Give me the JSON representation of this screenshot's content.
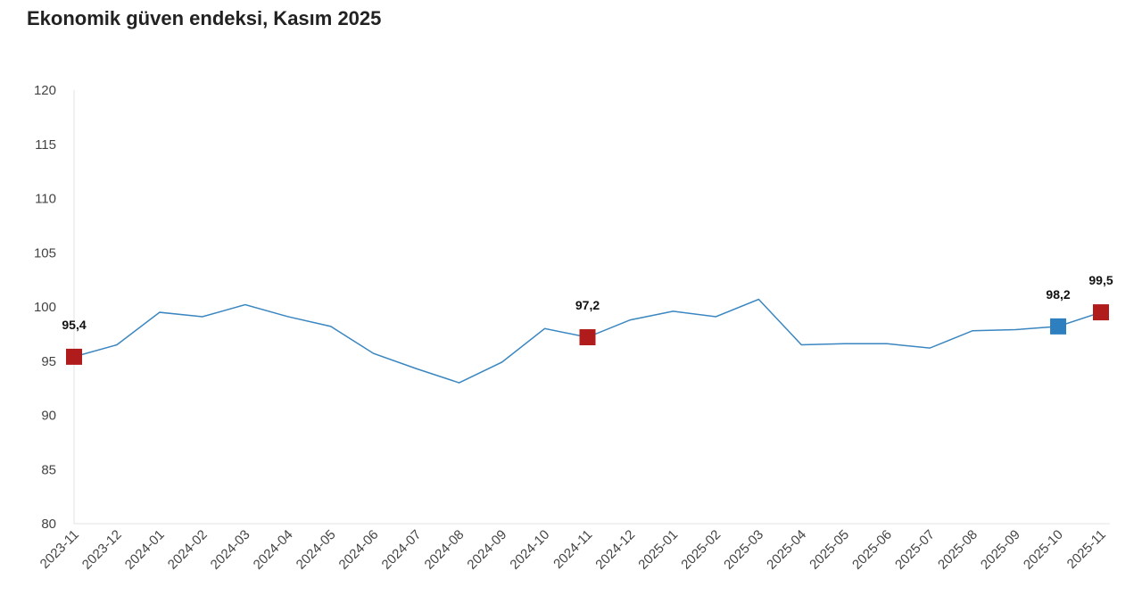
{
  "chart_data": {
    "type": "line",
    "title": "Ekonomik güven endeksi, Kasım 2025",
    "xlabel": "",
    "ylabel": "",
    "ylim": [
      80,
      120
    ],
    "yticks": [
      "80",
      "85",
      "90",
      "95",
      "100",
      "105",
      "110",
      "115",
      "120"
    ],
    "grid": false,
    "categories": [
      "2023-11",
      "2023-12",
      "2024-01",
      "2024-02",
      "2024-03",
      "2024-04",
      "2024-05",
      "2024-06",
      "2024-07",
      "2024-08",
      "2024-09",
      "2024-10",
      "2024-11",
      "2024-12",
      "2025-01",
      "2025-02",
      "2025-03",
      "2025-04",
      "2025-05",
      "2025-06",
      "2025-07",
      "2025-08",
      "2025-09",
      "2025-10",
      "2025-11"
    ],
    "series": [
      {
        "name": "Ekonomik güven endeksi",
        "color": "#3a86c0",
        "values": [
          95.4,
          96.5,
          99.5,
          99.1,
          100.2,
          99.1,
          98.2,
          95.7,
          94.3,
          93.0,
          94.9,
          98.0,
          97.2,
          98.8,
          99.6,
          99.1,
          100.7,
          96.5,
          96.6,
          96.6,
          96.2,
          97.8,
          97.9,
          98.2,
          99.5
        ]
      }
    ],
    "highlights": [
      {
        "index": 0,
        "label": "95,4",
        "color": "#b01c1c"
      },
      {
        "index": 12,
        "label": "97,2",
        "color": "#b01c1c"
      },
      {
        "index": 23,
        "label": "98,2",
        "color": "#2e7fbf"
      },
      {
        "index": 24,
        "label": "99,5",
        "color": "#b01c1c"
      }
    ]
  }
}
